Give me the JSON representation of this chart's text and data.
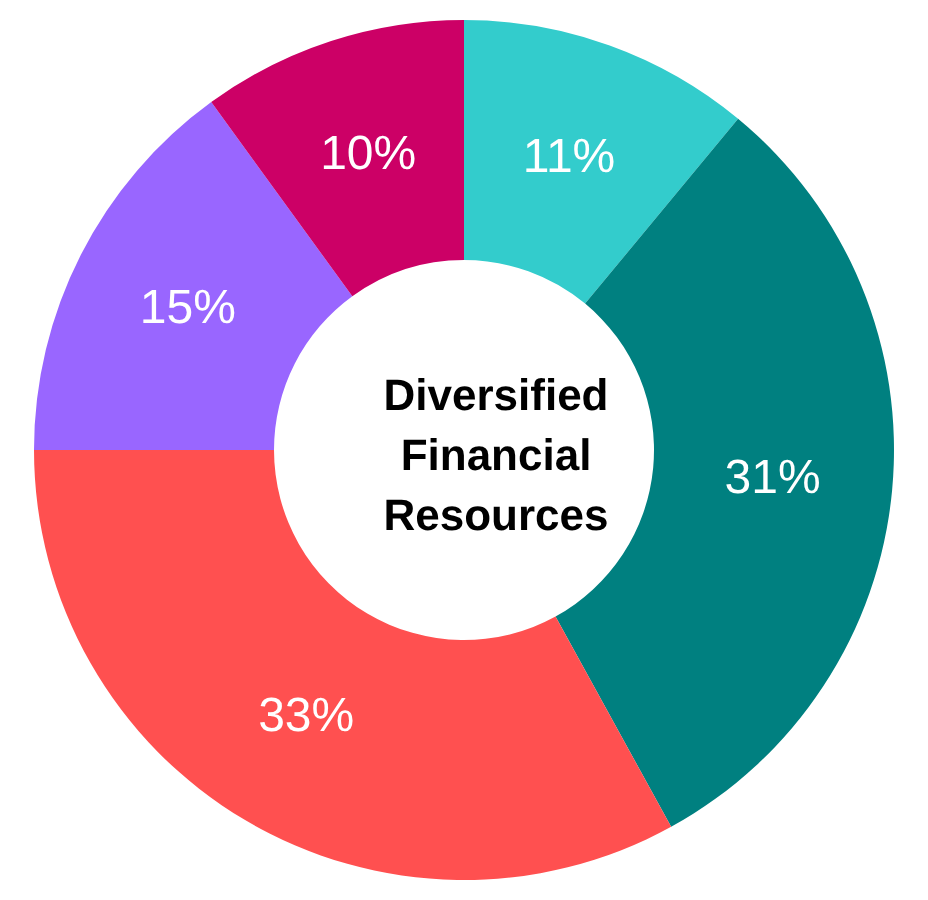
{
  "chart_data": {
    "type": "donut",
    "title": "Diversified Financial Resources",
    "categories": [
      null,
      null,
      null,
      null,
      null
    ],
    "values": [
      11,
      31,
      33,
      15,
      10
    ],
    "value_labels": [
      "11%",
      "31%",
      "33%",
      "15%",
      "10%"
    ],
    "colors": [
      "#33cccc",
      "#008080",
      "#ff5050",
      "#9966ff",
      "#cc0066"
    ]
  }
}
